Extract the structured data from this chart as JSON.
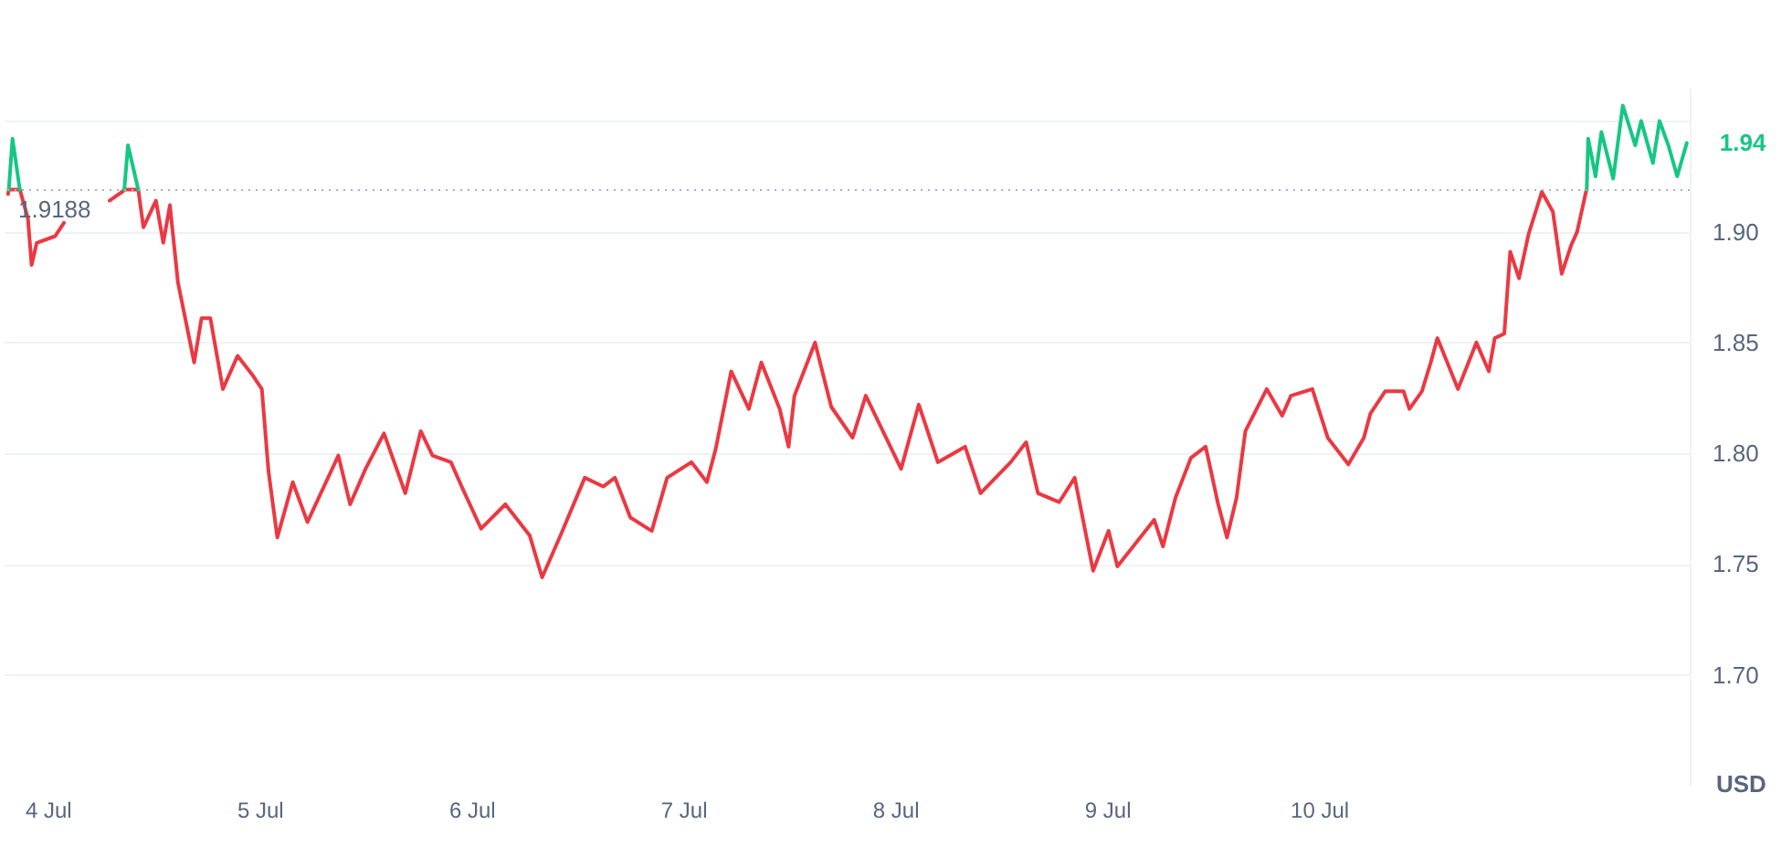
{
  "chart_data": {
    "type": "line",
    "ylabel": "USD",
    "grid": "y",
    "line_style": "solid",
    "xlim": [
      "--07-03T19:00",
      "--07-11T18:00"
    ],
    "xticks": [
      {
        "value": "--07-04",
        "label": "4 Jul"
      },
      {
        "value": "--07-05",
        "label": "5 Jul"
      },
      {
        "value": "--07-06",
        "label": "6 Jul"
      },
      {
        "value": "--07-07",
        "label": "7 Jul"
      },
      {
        "value": "--07-08",
        "label": "8 Jul"
      },
      {
        "value": "--07-09",
        "label": "9 Jul"
      },
      {
        "value": "--07-10",
        "label": "10 Jul"
      }
    ],
    "ylim": [
      1.65,
      1.965
    ],
    "yticks": [
      {
        "value": 1.7,
        "label": "1.70"
      },
      {
        "value": 1.75,
        "label": "1.75"
      },
      {
        "value": 1.8,
        "label": "1.80"
      },
      {
        "value": 1.85,
        "label": "1.85"
      },
      {
        "value": 1.9,
        "label": "1.90"
      },
      {
        "value": 1.95,
        "label": null
      }
    ],
    "ref_lines": [
      {
        "axis": "y",
        "value": 1.9188,
        "label": "1.9188",
        "color": "#a6b0c3",
        "line_style": "dotted"
      }
    ],
    "annotations": [
      {
        "text": "1.94",
        "x": "--07-11T17:40",
        "y": 1.94
      }
    ],
    "series": [
      {
        "color": "#ea3943",
        "x": [
          "--07-03T19:30",
          "--07-03T19:35",
          "--07-03T20:50",
          "--07-03T21:45",
          "--07-03T22:10",
          "--07-03T22:45",
          "--07-04T00:50",
          "--07-04T01:50",
          "--07-04T04:00",
          "--07-04T07:00",
          "--07-04T08:25",
          "--07-04T08:40",
          "--07-04T10:15",
          "--07-04T10:50",
          "--07-04T12:15",
          "--07-04T13:05",
          "--07-04T13:50",
          "--07-04T14:45",
          "--07-04T16:35",
          "--07-04T17:25",
          "--07-04T18:25",
          "--07-04T19:50",
          "--07-04T21:30",
          "--07-04T23:15",
          "--07-05T00:15",
          "--07-05T01:00",
          "--07-05T02:00",
          "--07-05T03:45",
          "--07-05T05:25",
          "--07-05T08:55",
          "--07-05T10:15",
          "--07-05T12:00",
          "--07-05T14:05",
          "--07-05T16:30",
          "--07-05T18:15",
          "--07-05T19:35",
          "--07-05T21:40",
          "--07-05T23:00",
          "--07-06T01:05",
          "--07-06T03:50",
          "--07-06T06:35",
          "--07-06T08:00",
          "--07-06T10:05",
          "--07-06T12:50",
          "--07-06T14:55",
          "--07-06T16:15",
          "--07-06T18:00",
          "--07-06T20:25",
          "--07-06T22:10",
          "--07-07T00:55",
          "--07-07T02:40",
          "--07-07T03:40",
          "--07-07T05:25",
          "--07-07T07:25",
          "--07-07T08:50",
          "--07-07T10:55",
          "--07-07T11:55",
          "--07-07T12:35",
          "--07-07T14:55",
          "--07-07T16:45",
          "--07-07T19:10",
          "--07-07T20:40",
          "--07-08T00:40",
          "--07-08T02:40",
          "--07-08T04:50",
          "--07-08T07:55",
          "--07-08T09:40",
          "--07-08T13:05",
          "--07-08T14:50",
          "--07-08T16:10",
          "--07-08T18:35",
          "--07-08T20:20",
          "--07-08T22:25",
          "--07-09T00:10",
          "--07-09T01:10",
          "--07-09T05:20",
          "--07-09T06:20",
          "--07-09T07:45",
          "--07-09T09:30",
          "--07-09T11:10",
          "--07-09T12:35",
          "--07-09T13:35",
          "--07-09T14:40",
          "--07-09T15:40",
          "--07-09T18:05",
          "--07-09T19:50",
          "--07-09T20:50",
          "--07-09T23:15",
          "--07-10T01:00",
          "--07-10T03:20",
          "--07-10T05:05",
          "--07-10T05:50",
          "--07-10T07:30",
          "--07-10T09:35",
          "--07-10T10:15",
          "--07-10T11:40",
          "--07-10T12:40",
          "--07-10T13:25",
          "--07-10T15:45",
          "--07-10T17:50",
          "--07-10T19:15",
          "--07-10T19:55",
          "--07-10T21:00",
          "--07-10T21:40",
          "--07-10T22:40",
          "--07-10T23:45",
          "--07-11T01:15",
          "--07-11T02:30",
          "--07-11T03:30",
          "--07-11T04:35",
          "--07-11T05:15",
          "--07-11T06:15",
          "--07-11T06:20"
        ],
        "values": [
          1.917,
          1.919,
          1.919,
          1.906,
          1.885,
          1.895,
          1.898,
          1.904,
          null,
          1.914,
          1.918,
          1.919,
          1.919,
          1.902,
          1.914,
          1.895,
          1.912,
          1.877,
          1.841,
          1.861,
          1.861,
          1.829,
          1.844,
          1.835,
          1.829,
          1.792,
          1.762,
          1.787,
          1.769,
          1.799,
          1.777,
          1.793,
          1.809,
          1.782,
          1.81,
          1.799,
          1.796,
          1.784,
          1.766,
          1.777,
          1.763,
          1.744,
          1.763,
          1.789,
          1.785,
          1.789,
          1.771,
          1.765,
          1.789,
          1.796,
          1.787,
          1.802,
          1.837,
          1.82,
          1.841,
          1.82,
          1.803,
          1.826,
          1.85,
          1.821,
          1.807,
          1.826,
          1.793,
          1.822,
          1.796,
          1.803,
          1.782,
          1.796,
          1.805,
          1.782,
          1.778,
          1.789,
          1.747,
          1.765,
          1.749,
          1.77,
          1.758,
          1.78,
          1.798,
          1.803,
          1.777,
          1.762,
          1.78,
          1.81,
          1.829,
          1.817,
          1.826,
          1.829,
          1.807,
          1.795,
          1.807,
          1.818,
          1.828,
          1.828,
          1.82,
          1.828,
          1.841,
          1.852,
          1.829,
          1.85,
          1.837,
          1.852,
          1.854,
          1.891,
          1.879,
          1.899,
          1.918,
          1.909,
          1.881,
          1.894,
          1.9,
          1.918,
          1.919
        ]
      },
      {
        "color": "#16c784",
        "x": [
          "--07-03T19:35",
          "--07-03T20:00",
          "--07-03T20:50",
          "--07-04T04:00",
          "--07-04T08:40",
          "--07-04T09:05",
          "--07-04T10:15",
          "--07-10T12:00",
          "--07-11T06:20",
          "--07-11T06:30",
          "--07-11T07:20",
          "--07-11T08:00",
          "--07-11T09:20",
          "--07-11T10:25",
          "--07-11T11:50",
          "--07-11T12:30",
          "--07-11T13:50",
          "--07-11T14:35",
          "--07-11T15:35",
          "--07-11T16:35",
          "--07-11T17:40"
        ],
        "values": [
          1.919,
          1.942,
          1.919,
          null,
          1.919,
          1.939,
          1.919,
          null,
          1.919,
          1.942,
          1.925,
          1.945,
          1.924,
          1.957,
          1.939,
          1.95,
          1.931,
          1.95,
          1.939,
          1.925,
          1.94
        ]
      }
    ]
  }
}
